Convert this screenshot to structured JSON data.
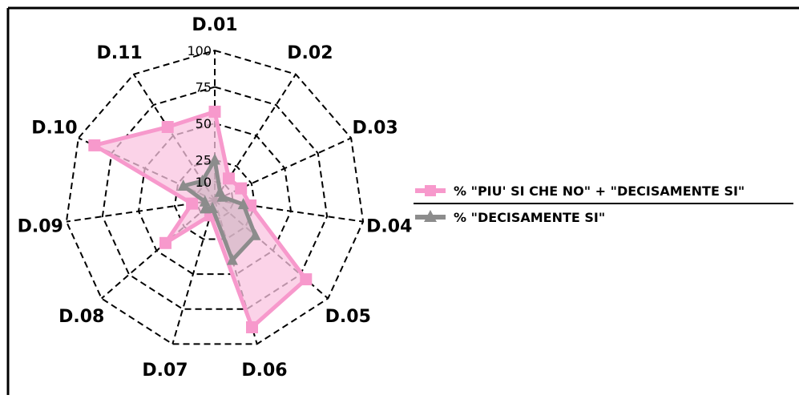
{
  "chart_data": {
    "type": "radar",
    "categories": [
      "D.01",
      "D.02",
      "D.03",
      "D.04",
      "D.05",
      "D.06",
      "D.07",
      "D.08",
      "D.09",
      "D.10",
      "D.11"
    ],
    "radial_ticks": [
      "10",
      "25",
      "50",
      "75",
      "100"
    ],
    "rlim": [
      0,
      100
    ],
    "grid": true,
    "legend_position": "right",
    "series": [
      {
        "name": "% \"PIU' SI CHE NO\" + \"DECISAMENTE SI\"",
        "values": [
          58,
          15,
          17,
          22,
          80,
          88,
          8,
          42,
          13,
          88,
          57
        ],
        "color": "#f799cc",
        "fill": "#f9c4e0",
        "marker": "square"
      },
      {
        "name": "% \"DECISAMENTE SI\"",
        "values": [
          25,
          4,
          3,
          17,
          34,
          40,
          3,
          6,
          4,
          21,
          13
        ],
        "color": "#8c8c8c",
        "fill": "#c8b0bc",
        "marker": "triangle"
      }
    ]
  }
}
